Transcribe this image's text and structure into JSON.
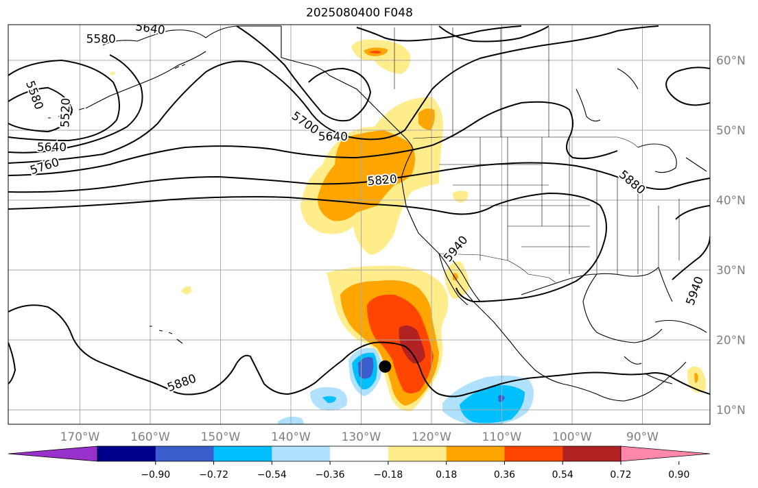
{
  "title": "2025080400 F048",
  "map": {
    "lon_labels": [
      "170°W",
      "160°W",
      "150°W",
      "140°W",
      "130°W",
      "120°W",
      "110°W",
      "100°W",
      "90°W"
    ],
    "lat_labels": [
      "60°N",
      "50°N",
      "40°N",
      "30°N",
      "20°N",
      "10°N"
    ],
    "grid_lons": [
      -170,
      -160,
      -150,
      -140,
      -130,
      -120,
      -110,
      -100,
      -90
    ],
    "grid_lats": [
      60,
      50,
      40,
      30,
      20,
      10
    ],
    "extent": {
      "lon_min": -180,
      "lon_max": -80,
      "lat_min": 8,
      "lat_max": 65
    },
    "contour_labels": [
      {
        "text": "5640",
        "lon": -160,
        "lat": 64.5,
        "rot": 8
      },
      {
        "text": "5580",
        "lon": -167,
        "lat": 63,
        "rot": 0
      },
      {
        "text": "5580",
        "lon": -176.5,
        "lat": 55,
        "rot": 70
      },
      {
        "text": "5520",
        "lon": -172,
        "lat": 52.5,
        "rot": -88
      },
      {
        "text": "5640",
        "lon": -174,
        "lat": 47.5,
        "rot": 0
      },
      {
        "text": "5760",
        "lon": -175,
        "lat": 44.8,
        "rot": -18
      },
      {
        "text": "5700",
        "lon": -138,
        "lat": 51,
        "rot": 35
      },
      {
        "text": "5640",
        "lon": -134,
        "lat": 49,
        "rot": 0
      },
      {
        "text": "5820",
        "lon": -127,
        "lat": 42.8,
        "rot": -5
      },
      {
        "text": "5880",
        "lon": -91.5,
        "lat": 42.5,
        "rot": 40
      },
      {
        "text": "5940",
        "lon": -116.5,
        "lat": 33,
        "rot": -50
      },
      {
        "text": "5940",
        "lon": -82.5,
        "lat": 27,
        "rot": -70
      },
      {
        "text": "5880",
        "lon": -155.5,
        "lat": 13.8,
        "rot": -20
      }
    ],
    "storm_marker": {
      "lon": -126.6,
      "lat": 16.2
    }
  },
  "colorbar": {
    "tick_labels": [
      "−0.90",
      "−0.72",
      "−0.54",
      "−0.36",
      "−0.18",
      "0.18",
      "0.36",
      "0.54",
      "0.72",
      "0.90"
    ],
    "colors": [
      "#9932cc",
      "#00008b",
      "#3a5fcd",
      "#00bfff",
      "#b0e2ff",
      "#ffffff",
      "#ffec8b",
      "#ffa500",
      "#ff4500",
      "#b22222",
      "#ff88aa"
    ]
  }
}
